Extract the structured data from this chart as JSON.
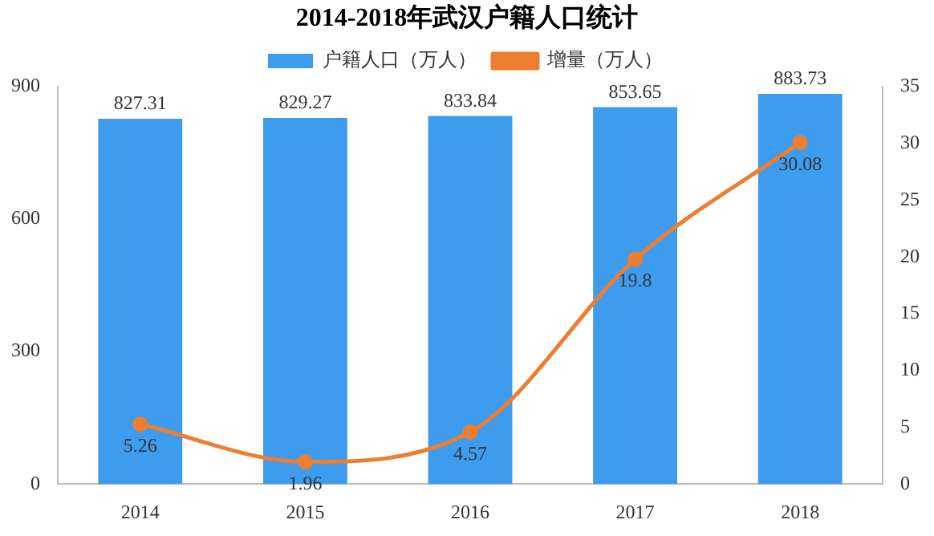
{
  "chart_data": {
    "type": "bar",
    "title": "2014-2018年武汉户籍人口统计",
    "categories": [
      "2014",
      "2015",
      "2016",
      "2017",
      "2018"
    ],
    "series": [
      {
        "name": "户籍人口（万人）",
        "color": "#3e9cee",
        "values": [
          827.31,
          829.27,
          833.84,
          853.65,
          883.73
        ]
      },
      {
        "name": "增量（万人）",
        "type": "line",
        "axis": "y2",
        "color": "#ed7d31",
        "values": [
          5.26,
          1.96,
          4.57,
          19.8,
          30.08
        ]
      }
    ],
    "ylim": [
      0,
      900
    ],
    "yticks": [
      0,
      300,
      600,
      900
    ],
    "y2lim": [
      0,
      35
    ],
    "y2ticks": [
      0,
      5,
      10,
      15,
      20,
      25,
      30,
      35
    ],
    "data_labels": true,
    "legend": "top",
    "grid": false,
    "marker": "circle",
    "line_style": "solid"
  }
}
